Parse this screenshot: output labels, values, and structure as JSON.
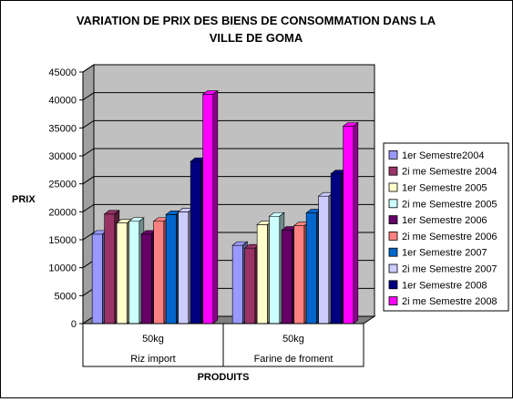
{
  "chart_data": {
    "type": "bar",
    "title": "VARIATION DE PRIX DES BIENS DE CONSOMMATION DANS LA VILLE DE GOMA",
    "title_lines": [
      "VARIATION DE PRIX DES BIENS DE CONSOMMATION DANS LA",
      "VILLE DE GOMA"
    ],
    "ylabel": "PRIX",
    "xlabel": "PRODUITS",
    "ylim": [
      0,
      45000
    ],
    "yticks": [
      0,
      5000,
      10000,
      15000,
      20000,
      25000,
      30000,
      35000,
      40000,
      45000
    ],
    "grid": true,
    "three_d": true,
    "legend_position": "right",
    "categories": [
      {
        "unit": "50kg",
        "name": "Riz import"
      },
      {
        "unit": "50kg",
        "name": "Farine de froment"
      }
    ],
    "series": [
      {
        "name": "1er Semestre2004",
        "color": "#9999FF",
        "values": [
          16000,
          14000
        ]
      },
      {
        "name": "2i  me Semestre 2004",
        "color": "#993366",
        "values": [
          19600,
          13500
        ]
      },
      {
        "name": "1er Semestre 2005",
        "color": "#FFFFCC",
        "values": [
          18000,
          17700
        ]
      },
      {
        "name": "2i  me Semestre 2005",
        "color": "#CCFFFF",
        "values": [
          18300,
          19200
        ]
      },
      {
        "name": "1er Semestre 2006",
        "color": "#660066",
        "values": [
          16000,
          16700
        ]
      },
      {
        "name": "2i  me Semestre 2006",
        "color": "#FF8080",
        "values": [
          18300,
          17500
        ]
      },
      {
        "name": "1er Semestre 2007",
        "color": "#0066CC",
        "values": [
          19500,
          19800
        ]
      },
      {
        "name": "2i  me Semestre 2007",
        "color": "#CCCCFF",
        "values": [
          20000,
          22800
        ]
      },
      {
        "name": "1er Semestre 2008",
        "color": "#000080",
        "values": [
          29000,
          26800
        ]
      },
      {
        "name": "2i  me Semestre 2008",
        "color": "#FF00FF",
        "values": [
          41000,
          35300
        ]
      }
    ]
  }
}
